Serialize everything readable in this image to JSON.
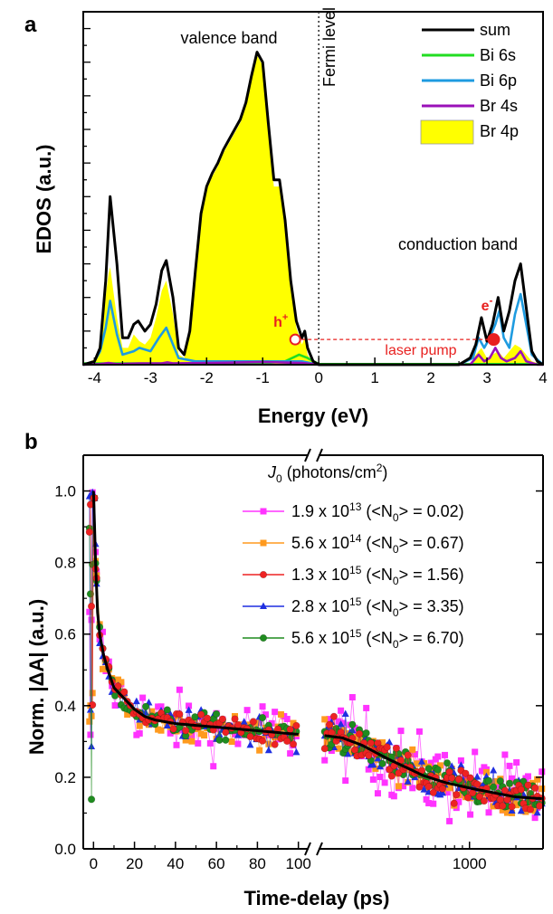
{
  "chart_data": [
    {
      "panel": "a",
      "type": "area",
      "xlabel": "Energy (eV)",
      "ylabel": "EDOS (a.u.)",
      "xlim": [
        -4.2,
        4
      ],
      "ylim": [
        0,
        1.05
      ],
      "xticks": [
        "-4",
        "-3",
        "-2",
        "-1",
        "0",
        "1",
        "2",
        "3",
        "4"
      ],
      "legend_position": "top-right",
      "series": [
        {
          "name": "sum",
          "color": "#000000",
          "style": "line",
          "x": [
            -4.2,
            -4.0,
            -3.9,
            -3.8,
            -3.72,
            -3.6,
            -3.5,
            -3.4,
            -3.3,
            -3.22,
            -3.1,
            -3.0,
            -2.9,
            -2.8,
            -2.72,
            -2.6,
            -2.5,
            -2.4,
            -2.3,
            -2.2,
            -2.1,
            -2.0,
            -1.9,
            -1.8,
            -1.7,
            -1.6,
            -1.5,
            -1.4,
            -1.3,
            -1.2,
            -1.1,
            -1.0,
            -0.9,
            -0.8,
            -0.7,
            -0.6,
            -0.5,
            -0.4,
            -0.3,
            -0.25,
            -0.2,
            -0.1,
            0,
            0.5,
            1.0,
            1.5,
            2.0,
            2.5,
            2.7,
            2.8,
            2.9,
            3.0,
            3.1,
            3.2,
            3.3,
            3.4,
            3.5,
            3.6,
            3.7,
            3.8,
            3.9,
            4.0
          ],
          "y": [
            0,
            0.01,
            0.05,
            0.25,
            0.5,
            0.3,
            0.08,
            0.08,
            0.12,
            0.13,
            0.1,
            0.12,
            0.18,
            0.28,
            0.31,
            0.2,
            0.05,
            0.03,
            0.1,
            0.28,
            0.45,
            0.53,
            0.57,
            0.6,
            0.64,
            0.67,
            0.7,
            0.73,
            0.78,
            0.86,
            0.93,
            0.9,
            0.72,
            0.55,
            0.55,
            0.43,
            0.25,
            0.13,
            0.08,
            0.1,
            0.05,
            0.01,
            0,
            0,
            0,
            0,
            0,
            0,
            0.02,
            0.06,
            0.14,
            0.07,
            0.12,
            0.2,
            0.1,
            0.16,
            0.25,
            0.3,
            0.17,
            0.04,
            0.01,
            0
          ]
        },
        {
          "name": "Bi 6s",
          "color": "#22dd22",
          "style": "line",
          "x": [
            -4.2,
            -1.0,
            -0.6,
            -0.35,
            -0.2,
            0,
            4.0
          ],
          "y": [
            0.004,
            0.004,
            0.01,
            0.03,
            0.02,
            0.002,
            0.002
          ]
        },
        {
          "name": "Bi 6p",
          "color": "#1e9be0",
          "style": "line",
          "x": [
            -4.2,
            -4.0,
            -3.9,
            -3.8,
            -3.72,
            -3.6,
            -3.5,
            -3.3,
            -3.2,
            -3.0,
            -2.85,
            -2.72,
            -2.6,
            -2.5,
            -2.2,
            -1.8,
            -1.5,
            -1.2,
            -1.0,
            -0.6,
            -0.3,
            0,
            2.5,
            2.75,
            2.85,
            2.95,
            3.05,
            3.15,
            3.22,
            3.3,
            3.4,
            3.5,
            3.6,
            3.7,
            3.8,
            4.0
          ],
          "y": [
            0,
            0.01,
            0.04,
            0.11,
            0.19,
            0.09,
            0.03,
            0.04,
            0.05,
            0.04,
            0.08,
            0.11,
            0.06,
            0.02,
            0.01,
            0.01,
            0.01,
            0.01,
            0.01,
            0.01,
            0.01,
            0,
            0,
            0.02,
            0.08,
            0.05,
            0.08,
            0.12,
            0.16,
            0.08,
            0.05,
            0.15,
            0.21,
            0.12,
            0.03,
            0
          ]
        },
        {
          "name": "Br 4s",
          "color": "#9a10b8",
          "style": "line",
          "x": [
            -4.2,
            -3.9,
            -3.75,
            -3.6,
            -3.2,
            -2.8,
            -2.7,
            -2.6,
            -2.0,
            -1.0,
            -0.3,
            0,
            2.7,
            2.85,
            2.95,
            3.05,
            3.15,
            3.25,
            3.35,
            3.5,
            3.6,
            3.7,
            3.9,
            4.0
          ],
          "y": [
            0,
            0.002,
            0.005,
            0.002,
            0.004,
            0.004,
            0.007,
            0.004,
            0.005,
            0.008,
            0.005,
            0,
            0,
            0.03,
            0.01,
            0.02,
            0.05,
            0.02,
            0.01,
            0.02,
            0.04,
            0.01,
            0,
            0
          ]
        },
        {
          "name": "Br 4p",
          "color": "#ffff00",
          "style": "fill",
          "x": [
            -4.2,
            -3.95,
            -3.85,
            -3.75,
            -3.72,
            -3.6,
            -3.5,
            -3.4,
            -3.3,
            -3.2,
            -3.1,
            -3.0,
            -2.9,
            -2.8,
            -2.72,
            -2.6,
            -2.5,
            -2.4,
            -2.3,
            -2.2,
            -2.1,
            -2.0,
            -1.9,
            -1.8,
            -1.7,
            -1.6,
            -1.5,
            -1.4,
            -1.3,
            -1.2,
            -1.1,
            -1.0,
            -0.9,
            -0.8,
            -0.7,
            -0.6,
            -0.5,
            -0.4,
            -0.3,
            -0.25,
            -0.2,
            -0.1,
            0,
            2.7,
            2.8,
            2.9,
            3.0,
            3.1,
            3.2,
            3.3,
            3.4,
            3.5,
            3.6,
            3.7,
            3.8,
            4.0
          ],
          "y": [
            0,
            0.02,
            0.14,
            0.27,
            0.29,
            0.14,
            0.05,
            0.05,
            0.09,
            0.07,
            0.06,
            0.08,
            0.14,
            0.22,
            0.25,
            0.15,
            0.03,
            0.02,
            0.09,
            0.27,
            0.44,
            0.52,
            0.56,
            0.59,
            0.63,
            0.66,
            0.69,
            0.72,
            0.77,
            0.85,
            0.92,
            0.89,
            0.7,
            0.53,
            0.53,
            0.41,
            0.23,
            0.11,
            0.06,
            0.08,
            0.03,
            0.005,
            0,
            0,
            0.03,
            0.05,
            0.02,
            0.03,
            0.04,
            0.02,
            0.04,
            0.06,
            0.05,
            0.03,
            0.01,
            0
          ]
        }
      ],
      "annotations": {
        "valence": "valence band",
        "fermi": "Fermi level",
        "conduction": "conduction band",
        "hole": "h",
        "hole_sup": "+",
        "electron": "e",
        "electron_sup": "-",
        "laser": "laser pump"
      }
    },
    {
      "panel": "b",
      "type": "scatter",
      "xlabel": "Time-delay (ps)",
      "ylabel": "Norm. |ΔA| (a.u.)",
      "ylim": [
        0,
        1.1
      ],
      "xaxis_linear_range": [
        -5,
        105
      ],
      "xaxis_log_range": [
        105,
        3000
      ],
      "xticks_linear": [
        "0",
        "20",
        "40",
        "60",
        "80",
        "100"
      ],
      "xticks_log": [
        "1000"
      ],
      "yticks": [
        "0.0",
        "0.2",
        "0.4",
        "0.6",
        "0.8",
        "1.0"
      ],
      "legend_title": "J",
      "legend_title_sub": "0",
      "legend_title_rest": " (photons/cm",
      "legend_title_sup": "2",
      "legend_title_end": ")",
      "legend_position": "top-right",
      "series": [
        {
          "name": "1.9 x 10^13 (<N0> = 0.02)",
          "label_pre": "1.9 x 10",
          "label_exp": "13",
          "label_post": "0.02",
          "marker": "square",
          "color": "#ff33ff",
          "noise": 0.06
        },
        {
          "name": "5.6 x 10^14 (<N0> = 0.67)",
          "label_pre": "5.6 x 10",
          "label_exp": "14",
          "label_post": "0.67",
          "marker": "square",
          "color": "#ff9a1e",
          "noise": 0.03
        },
        {
          "name": "1.3 x 10^15 (<N0> = 1.56)",
          "label_pre": "1.3 x 10",
          "label_exp": "15",
          "label_post": "1.56",
          "marker": "circle",
          "color": "#ee2222",
          "noise": 0.025
        },
        {
          "name": "2.8 x 10^15 (<N0> = 3.35)",
          "label_pre": "2.8 x 10",
          "label_exp": "15",
          "label_post": "3.35",
          "marker": "triangle",
          "color": "#1f2fe0",
          "noise": 0.03
        },
        {
          "name": "5.6 x 10^15 (<N0> = 6.70)",
          "label_pre": "5.6 x 10",
          "label_exp": "15",
          "label_post": "6.70",
          "marker": "circle",
          "color": "#1f8c1f",
          "noise": 0.025
        }
      ],
      "fit": {
        "color": "#000000",
        "x": [
          0,
          1,
          2,
          3,
          5,
          7,
          10,
          15,
          20,
          25,
          30,
          40,
          50,
          60,
          70,
          80,
          90,
          100,
          150,
          200,
          300,
          400,
          500,
          700,
          1000,
          1500,
          2000,
          3000
        ],
        "y": [
          1.0,
          0.8,
          0.66,
          0.6,
          0.54,
          0.5,
          0.45,
          0.42,
          0.39,
          0.37,
          0.36,
          0.35,
          0.345,
          0.34,
          0.335,
          0.33,
          0.325,
          0.32,
          0.31,
          0.29,
          0.25,
          0.225,
          0.205,
          0.185,
          0.17,
          0.155,
          0.145,
          0.14
        ]
      },
      "legend_N_pre": "(<N",
      "legend_N_sub": "0",
      "legend_N_mid": "> = "
    }
  ]
}
